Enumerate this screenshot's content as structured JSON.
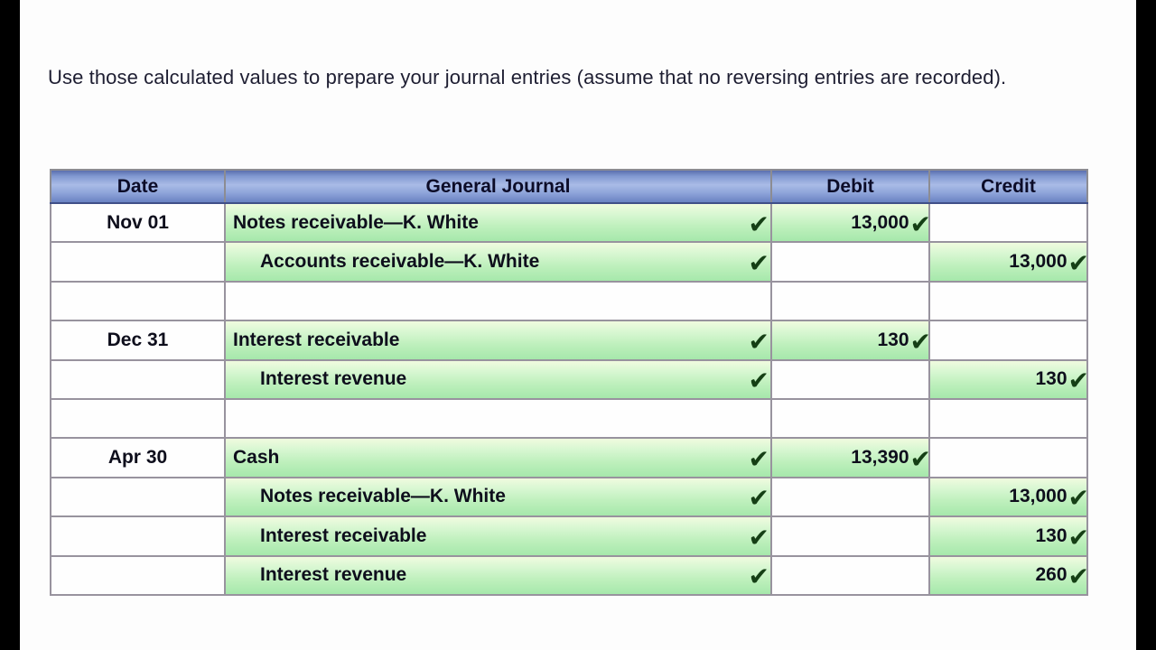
{
  "page": {
    "instruction": "Use those calculated values to prepare your journal entries (assume that no reversing entries are recorded)."
  },
  "journal_table": {
    "headers": [
      "Date",
      "General Journal",
      "Debit",
      "Credit"
    ],
    "check_glyph": "✔",
    "rows": [
      {
        "date": "Nov 01",
        "account": "Notes receivable—K. White",
        "indent": false,
        "account_check": true,
        "debit": "13,000",
        "debit_check": true,
        "credit": "",
        "credit_check": false
      },
      {
        "date": "",
        "account": "Accounts receivable—K. White",
        "indent": true,
        "account_check": true,
        "debit": "",
        "debit_check": false,
        "credit": "13,000",
        "credit_check": true
      },
      {
        "date": "",
        "account": "",
        "indent": false,
        "account_check": false,
        "debit": "",
        "debit_check": false,
        "credit": "",
        "credit_check": false
      },
      {
        "date": "Dec 31",
        "account": "Interest receivable",
        "indent": false,
        "account_check": true,
        "debit": "130",
        "debit_check": true,
        "credit": "",
        "credit_check": false
      },
      {
        "date": "",
        "account": "Interest revenue",
        "indent": true,
        "account_check": true,
        "debit": "",
        "debit_check": false,
        "credit": "130",
        "credit_check": true
      },
      {
        "date": "",
        "account": "",
        "indent": false,
        "account_check": false,
        "debit": "",
        "debit_check": false,
        "credit": "",
        "credit_check": false
      },
      {
        "date": "Apr 30",
        "account": "Cash",
        "indent": false,
        "account_check": true,
        "debit": "13,390",
        "debit_check": true,
        "credit": "",
        "credit_check": false
      },
      {
        "date": "",
        "account": "Notes receivable—K. White",
        "indent": true,
        "account_check": true,
        "debit": "",
        "debit_check": false,
        "credit": "13,000",
        "credit_check": true
      },
      {
        "date": "",
        "account": "Interest receivable",
        "indent": true,
        "account_check": true,
        "debit": "",
        "debit_check": false,
        "credit": "130",
        "credit_check": true
      },
      {
        "date": "",
        "account": "Interest revenue",
        "indent": true,
        "account_check": true,
        "debit": "",
        "debit_check": false,
        "credit": "260",
        "credit_check": true
      }
    ]
  },
  "colors": {
    "frame_black": "#000000",
    "header_blue_light": "#a9bbe6",
    "header_blue_dark": "#6a82c2",
    "header_text": "#0c0c28",
    "cell_text": "#0e0e1c",
    "green_cell_top": "#f0fbdf",
    "green_cell_bottom": "#a6e8ab",
    "check_green": "#153f15",
    "grid_border": "#98939e"
  }
}
